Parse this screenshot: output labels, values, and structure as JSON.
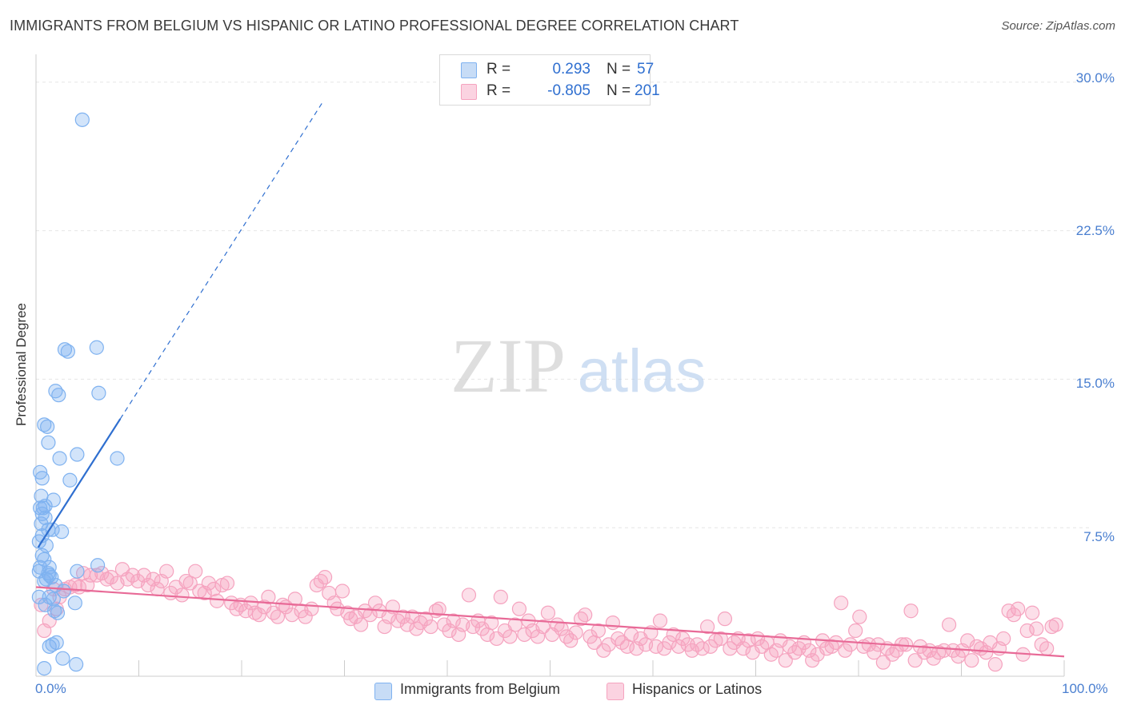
{
  "header": {
    "title": "IMMIGRANTS FROM BELGIUM VS HISPANIC OR LATINO PROFESSIONAL DEGREE CORRELATION CHART",
    "source": "Source: ZipAtlas.com"
  },
  "watermark": {
    "zip": "ZIP",
    "atlas": "atlas"
  },
  "legend": {
    "rows": [
      {
        "r_label": "R =",
        "r_value": "0.293",
        "n_label": "N =",
        "n_value": "57",
        "color": "#7fb2f0"
      },
      {
        "r_label": "R =",
        "r_value": "-0.805",
        "n_label": "N =",
        "n_value": "201",
        "color": "#f5a3bf"
      }
    ]
  },
  "bottom_legend": {
    "items": [
      {
        "label": "Immigrants from Belgium",
        "color": "#7fb2f0"
      },
      {
        "label": "Hispanics or Latinos",
        "color": "#f5a3bf"
      }
    ]
  },
  "chart_data": {
    "type": "scatter",
    "title": "IMMIGRANTS FROM BELGIUM VS HISPANIC OR LATINO PROFESSIONAL DEGREE CORRELATION CHART",
    "xlabel": "",
    "ylabel": "Professional Degree",
    "xlim": [
      0,
      100
    ],
    "ylim": [
      0,
      31
    ],
    "x_tick_labels": [
      "0.0%",
      "100.0%"
    ],
    "y_ticks": [
      {
        "value": 7.5,
        "label": "7.5%"
      },
      {
        "value": 15,
        "label": "15.0%"
      },
      {
        "value": 22.5,
        "label": "22.5%"
      },
      {
        "value": 30,
        "label": "30.0%"
      }
    ],
    "grid": true,
    "series": [
      {
        "name": "Immigrants from Belgium",
        "color": "#7fb2f0",
        "line_color": "#2f6fd0",
        "R": 0.293,
        "N": 57,
        "trend": {
          "x0": 0.2,
          "y0": 6.5,
          "x1": 8.2,
          "y1": 13.0,
          "x_dash_end": 28
        },
        "points": [
          [
            4.5,
            28.1
          ],
          [
            2.8,
            16.5
          ],
          [
            3.1,
            16.4
          ],
          [
            5.9,
            16.6
          ],
          [
            1.9,
            14.4
          ],
          [
            2.2,
            14.2
          ],
          [
            6.1,
            14.3
          ],
          [
            0.8,
            12.7
          ],
          [
            1.1,
            12.6
          ],
          [
            1.2,
            11.8
          ],
          [
            2.3,
            11.0
          ],
          [
            4.0,
            11.2
          ],
          [
            7.9,
            11.0
          ],
          [
            0.4,
            10.3
          ],
          [
            0.6,
            10.0
          ],
          [
            3.3,
            9.9
          ],
          [
            0.5,
            9.1
          ],
          [
            1.7,
            8.9
          ],
          [
            0.4,
            8.5
          ],
          [
            0.7,
            8.5
          ],
          [
            0.9,
            8.6
          ],
          [
            0.6,
            8.2
          ],
          [
            0.9,
            8.0
          ],
          [
            0.5,
            7.7
          ],
          [
            1.2,
            7.4
          ],
          [
            1.6,
            7.4
          ],
          [
            2.5,
            7.3
          ],
          [
            0.6,
            7.1
          ],
          [
            0.3,
            6.8
          ],
          [
            1.0,
            6.6
          ],
          [
            0.6,
            6.1
          ],
          [
            0.8,
            5.9
          ],
          [
            1.3,
            5.5
          ],
          [
            0.4,
            5.5
          ],
          [
            4.0,
            5.3
          ],
          [
            6.0,
            5.6
          ],
          [
            1.2,
            5.2
          ],
          [
            1.5,
            5.0
          ],
          [
            1.3,
            5.1
          ],
          [
            0.8,
            4.8
          ],
          [
            1.0,
            4.9
          ],
          [
            1.9,
            4.6
          ],
          [
            2.7,
            4.3
          ],
          [
            1.3,
            4.0
          ],
          [
            1.7,
            3.9
          ],
          [
            3.8,
            3.7
          ],
          [
            0.9,
            3.6
          ],
          [
            1.8,
            3.3
          ],
          [
            2.0,
            1.7
          ],
          [
            1.6,
            1.6
          ],
          [
            1.3,
            1.5
          ],
          [
            2.6,
            0.9
          ],
          [
            3.9,
            0.6
          ],
          [
            0.8,
            0.4
          ],
          [
            0.3,
            5.3
          ],
          [
            0.3,
            4.0
          ],
          [
            2.1,
            3.2
          ]
        ]
      },
      {
        "name": "Hispanics or Latinos",
        "color": "#f5a3bf",
        "line_color": "#e86a97",
        "R": -0.805,
        "N": 201,
        "trend": {
          "x0": 0.0,
          "y0": 4.5,
          "x1": 100.0,
          "y1": 1.0
        },
        "points": [
          [
            0.5,
            3.6
          ],
          [
            0.8,
            2.3
          ],
          [
            1.3,
            2.8
          ],
          [
            1.7,
            4.4
          ],
          [
            2.0,
            3.4
          ],
          [
            2.3,
            4.0
          ],
          [
            2.8,
            4.4
          ],
          [
            3.3,
            4.5
          ],
          [
            3.8,
            4.6
          ],
          [
            4.2,
            4.5
          ],
          [
            4.6,
            5.2
          ],
          [
            5.0,
            4.6
          ],
          [
            5.3,
            5.1
          ],
          [
            5.9,
            5.1
          ],
          [
            6.4,
            5.2
          ],
          [
            6.9,
            4.9
          ],
          [
            7.3,
            5.0
          ],
          [
            7.9,
            4.7
          ],
          [
            8.4,
            5.4
          ],
          [
            8.9,
            4.9
          ],
          [
            9.4,
            5.1
          ],
          [
            9.9,
            4.8
          ],
          [
            10.5,
            5.1
          ],
          [
            10.9,
            4.6
          ],
          [
            11.4,
            4.9
          ],
          [
            11.8,
            4.4
          ],
          [
            12.2,
            4.8
          ],
          [
            12.7,
            5.3
          ],
          [
            13.1,
            4.2
          ],
          [
            13.6,
            4.5
          ],
          [
            14.2,
            4.1
          ],
          [
            14.6,
            4.8
          ],
          [
            15.0,
            4.7
          ],
          [
            15.5,
            5.3
          ],
          [
            15.9,
            4.3
          ],
          [
            16.4,
            4.2
          ],
          [
            16.8,
            4.7
          ],
          [
            17.3,
            4.4
          ],
          [
            17.6,
            3.8
          ],
          [
            18.1,
            4.6
          ],
          [
            18.6,
            4.7
          ],
          [
            19.0,
            3.7
          ],
          [
            19.5,
            3.4
          ],
          [
            19.9,
            3.6
          ],
          [
            20.4,
            3.3
          ],
          [
            20.9,
            3.7
          ],
          [
            21.3,
            3.2
          ],
          [
            21.7,
            3.1
          ],
          [
            22.2,
            3.5
          ],
          [
            22.6,
            4.0
          ],
          [
            23.1,
            3.2
          ],
          [
            23.5,
            3.0
          ],
          [
            24.0,
            3.6
          ],
          [
            24.3,
            3.5
          ],
          [
            24.9,
            3.1
          ],
          [
            25.2,
            3.9
          ],
          [
            25.8,
            3.3
          ],
          [
            26.2,
            3.0
          ],
          [
            26.8,
            3.4
          ],
          [
            27.3,
            4.6
          ],
          [
            27.7,
            4.8
          ],
          [
            28.1,
            5.0
          ],
          [
            28.5,
            4.2
          ],
          [
            29.0,
            3.7
          ],
          [
            29.3,
            3.4
          ],
          [
            29.8,
            4.3
          ],
          [
            30.3,
            3.2
          ],
          [
            30.6,
            2.9
          ],
          [
            31.1,
            3.0
          ],
          [
            31.6,
            2.6
          ],
          [
            32.0,
            3.3
          ],
          [
            32.5,
            3.1
          ],
          [
            33.0,
            3.7
          ],
          [
            33.4,
            3.3
          ],
          [
            33.9,
            2.5
          ],
          [
            34.3,
            3.0
          ],
          [
            34.7,
            3.5
          ],
          [
            35.2,
            2.8
          ],
          [
            35.7,
            3.0
          ],
          [
            36.1,
            2.6
          ],
          [
            36.6,
            3.0
          ],
          [
            37.0,
            2.4
          ],
          [
            37.4,
            2.7
          ],
          [
            37.9,
            2.9
          ],
          [
            38.4,
            2.5
          ],
          [
            38.9,
            3.3
          ],
          [
            39.2,
            3.4
          ],
          [
            39.7,
            2.6
          ],
          [
            40.2,
            2.3
          ],
          [
            40.6,
            2.8
          ],
          [
            41.1,
            2.1
          ],
          [
            41.5,
            2.6
          ],
          [
            42.1,
            4.1
          ],
          [
            42.5,
            2.5
          ],
          [
            43.0,
            2.8
          ],
          [
            43.4,
            2.4
          ],
          [
            43.9,
            2.1
          ],
          [
            44.3,
            2.7
          ],
          [
            44.8,
            1.9
          ],
          [
            45.2,
            4.0
          ],
          [
            45.6,
            2.3
          ],
          [
            46.1,
            2.0
          ],
          [
            46.6,
            2.6
          ],
          [
            47.0,
            3.4
          ],
          [
            47.5,
            2.1
          ],
          [
            47.9,
            2.8
          ],
          [
            48.3,
            2.3
          ],
          [
            48.8,
            2.0
          ],
          [
            49.3,
            2.5
          ],
          [
            49.8,
            3.2
          ],
          [
            50.2,
            2.1
          ],
          [
            50.7,
            2.6
          ],
          [
            51.1,
            2.4
          ],
          [
            51.6,
            2.0
          ],
          [
            52.0,
            1.8
          ],
          [
            52.5,
            2.2
          ],
          [
            53.0,
            2.9
          ],
          [
            53.4,
            3.1
          ],
          [
            53.9,
            2.0
          ],
          [
            54.3,
            1.7
          ],
          [
            54.7,
            2.3
          ],
          [
            55.2,
            1.3
          ],
          [
            55.7,
            1.6
          ],
          [
            56.1,
            2.7
          ],
          [
            56.6,
            1.9
          ],
          [
            57.0,
            1.7
          ],
          [
            57.5,
            1.5
          ],
          [
            57.9,
            2.1
          ],
          [
            58.4,
            1.4
          ],
          [
            58.8,
            1.9
          ],
          [
            59.3,
            1.6
          ],
          [
            59.8,
            2.2
          ],
          [
            60.3,
            1.5
          ],
          [
            60.7,
            2.8
          ],
          [
            61.1,
            1.4
          ],
          [
            61.6,
            1.7
          ],
          [
            62.0,
            2.1
          ],
          [
            62.5,
            1.5
          ],
          [
            62.9,
            1.9
          ],
          [
            63.4,
            1.6
          ],
          [
            63.8,
            1.3
          ],
          [
            64.3,
            1.6
          ],
          [
            64.8,
            1.4
          ],
          [
            65.3,
            2.5
          ],
          [
            65.6,
            1.5
          ],
          [
            66.1,
            1.8
          ],
          [
            66.6,
            1.9
          ],
          [
            67.0,
            2.9
          ],
          [
            67.5,
            1.4
          ],
          [
            67.9,
            1.7
          ],
          [
            68.3,
            1.9
          ],
          [
            68.8,
            1.4
          ],
          [
            69.3,
            1.8
          ],
          [
            69.7,
            1.2
          ],
          [
            70.2,
            1.9
          ],
          [
            70.6,
            1.5
          ],
          [
            71.1,
            1.7
          ],
          [
            71.5,
            1.1
          ],
          [
            72.0,
            1.3
          ],
          [
            72.4,
            1.8
          ],
          [
            72.9,
            0.8
          ],
          [
            73.3,
            1.5
          ],
          [
            73.8,
            1.2
          ],
          [
            74.2,
            1.4
          ],
          [
            74.7,
            1.7
          ],
          [
            75.2,
            1.3
          ],
          [
            75.5,
            0.8
          ],
          [
            76.0,
            1.1
          ],
          [
            76.5,
            1.8
          ],
          [
            76.9,
            1.4
          ],
          [
            77.4,
            1.5
          ],
          [
            77.8,
            1.7
          ],
          [
            78.3,
            3.7
          ],
          [
            78.7,
            1.3
          ],
          [
            79.2,
            1.6
          ],
          [
            79.7,
            2.3
          ],
          [
            80.1,
            3.0
          ],
          [
            80.5,
            1.5
          ],
          [
            81.0,
            1.6
          ],
          [
            81.5,
            1.2
          ],
          [
            81.9,
            1.6
          ],
          [
            82.4,
            0.7
          ],
          [
            82.8,
            1.4
          ],
          [
            83.3,
            1.1
          ],
          [
            83.7,
            1.3
          ],
          [
            84.2,
            1.6
          ],
          [
            84.6,
            1.6
          ],
          [
            85.1,
            3.3
          ],
          [
            85.5,
            0.8
          ],
          [
            86.0,
            1.5
          ],
          [
            86.4,
            1.2
          ],
          [
            86.9,
            1.3
          ],
          [
            87.3,
            0.9
          ],
          [
            87.8,
            1.2
          ],
          [
            88.3,
            1.3
          ],
          [
            88.8,
            2.6
          ],
          [
            89.2,
            1.3
          ],
          [
            89.7,
            1.0
          ],
          [
            90.1,
            1.3
          ],
          [
            90.6,
            1.8
          ],
          [
            91.0,
            0.8
          ],
          [
            91.5,
            1.5
          ],
          [
            91.9,
            1.4
          ],
          [
            92.4,
            1.2
          ],
          [
            92.8,
            1.7
          ],
          [
            93.3,
            0.6
          ],
          [
            93.7,
            1.4
          ],
          [
            94.1,
            1.9
          ],
          [
            94.6,
            3.3
          ],
          [
            95.1,
            3.1
          ],
          [
            95.5,
            3.4
          ],
          [
            96.0,
            1.1
          ],
          [
            96.4,
            2.3
          ],
          [
            96.9,
            3.2
          ],
          [
            97.3,
            2.4
          ],
          [
            97.8,
            1.6
          ],
          [
            98.3,
            1.4
          ],
          [
            98.8,
            2.5
          ],
          [
            99.2,
            2.6
          ]
        ]
      }
    ]
  }
}
